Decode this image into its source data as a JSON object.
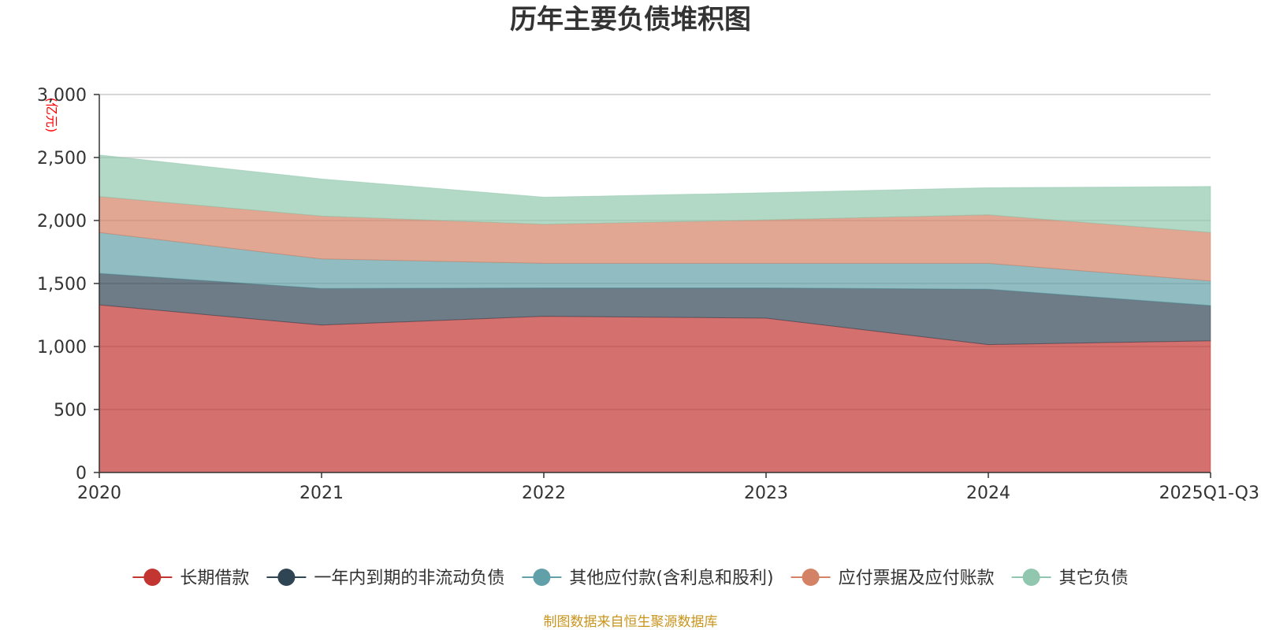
{
  "chart_data": {
    "type": "area",
    "stacked": true,
    "title": "历年主要负债堆积图",
    "ylabel": "(亿元)",
    "xlabel": "",
    "ylim": [
      0,
      3000
    ],
    "yticks": [
      0,
      500,
      1000,
      1500,
      2000,
      2500,
      3000
    ],
    "ytick_labels": [
      "0",
      "500",
      "1,000",
      "1,500",
      "2,000",
      "2,500",
      "3,000"
    ],
    "categories": [
      "2020",
      "2021",
      "2022",
      "2023",
      "2024",
      "2025Q1-Q3"
    ],
    "series": [
      {
        "name": "长期借款",
        "color": "#c23531",
        "values": [
          1330,
          1170,
          1240,
          1225,
          1015,
          1045
        ]
      },
      {
        "name": "一年内到期的非流动负债",
        "color": "#2f4554",
        "values": [
          250,
          290,
          225,
          240,
          440,
          280
        ]
      },
      {
        "name": "其他应付款(含利息和股利)",
        "color": "#61a0a8",
        "values": [
          325,
          235,
          195,
          195,
          205,
          195
        ]
      },
      {
        "name": "应付票据及应付账款",
        "color": "#d48265",
        "values": [
          285,
          340,
          310,
          345,
          385,
          385
        ]
      },
      {
        "name": "其它负债",
        "color": "#91c7ae",
        "values": [
          330,
          295,
          215,
          215,
          215,
          365
        ]
      }
    ],
    "grid": true,
    "legend_position": "bottom",
    "source_note": "制图数据来自恒生聚源数据库"
  }
}
